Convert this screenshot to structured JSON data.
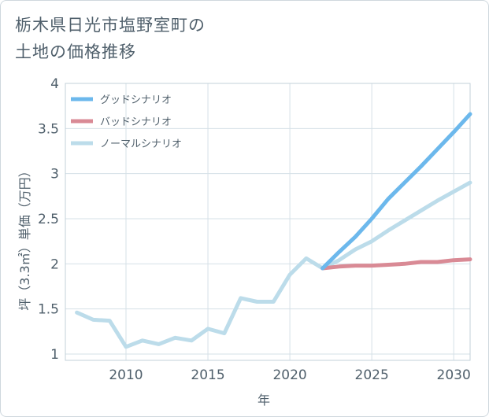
{
  "header": {
    "title_line1": "栃木県日光市塩野室町の",
    "title_line2": "土地の価格推移"
  },
  "chart_data": {
    "type": "line",
    "title": "栃木県日光市塩野室町の土地の価格推移",
    "xlabel": "年",
    "ylabel": "坪（3.3㎡）単価（万円）",
    "xlim": [
      2006.3,
      2031
    ],
    "ylim": [
      0.93,
      4
    ],
    "xticks": [
      2010,
      2015,
      2020,
      2025,
      2030
    ],
    "yticks": [
      1,
      1.5,
      2,
      2.5,
      3,
      3.5,
      4
    ],
    "ytick_labels": [
      "1",
      "1.5",
      "2",
      "2.5",
      "3",
      "3.5",
      "4"
    ],
    "xtick_labels": [
      "2010",
      "2015",
      "2020",
      "2025",
      "2030"
    ],
    "grid": true,
    "legend_position": "top-left",
    "series": [
      {
        "name": "グッドシナリオ",
        "color": "#6cb8ec",
        "x": [
          2022,
          2023,
          2024,
          2025,
          2026,
          2027,
          2028,
          2029,
          2030,
          2031
        ],
        "y": [
          1.95,
          2.13,
          2.3,
          2.5,
          2.72,
          2.9,
          3.08,
          3.27,
          3.46,
          3.66
        ]
      },
      {
        "name": "バッドシナリオ",
        "color": "#d98a95",
        "x": [
          2022,
          2023,
          2024,
          2025,
          2026,
          2027,
          2028,
          2029,
          2030,
          2031
        ],
        "y": [
          1.95,
          1.97,
          1.98,
          1.98,
          1.99,
          2.0,
          2.02,
          2.02,
          2.04,
          2.05
        ]
      },
      {
        "name": "ノーマルシナリオ",
        "color": "#bcdcea",
        "x": [
          2007,
          2008,
          2009,
          2010,
          2011,
          2012,
          2013,
          2014,
          2015,
          2016,
          2017,
          2018,
          2019,
          2020,
          2021,
          2022,
          2023,
          2024,
          2025,
          2026,
          2027,
          2028,
          2029,
          2030,
          2031
        ],
        "y": [
          1.46,
          1.38,
          1.37,
          1.08,
          1.15,
          1.11,
          1.18,
          1.15,
          1.28,
          1.23,
          1.62,
          1.58,
          1.58,
          1.88,
          2.06,
          1.95,
          2.04,
          2.16,
          2.25,
          2.37,
          2.48,
          2.59,
          2.7,
          2.8,
          2.9
        ]
      }
    ]
  }
}
